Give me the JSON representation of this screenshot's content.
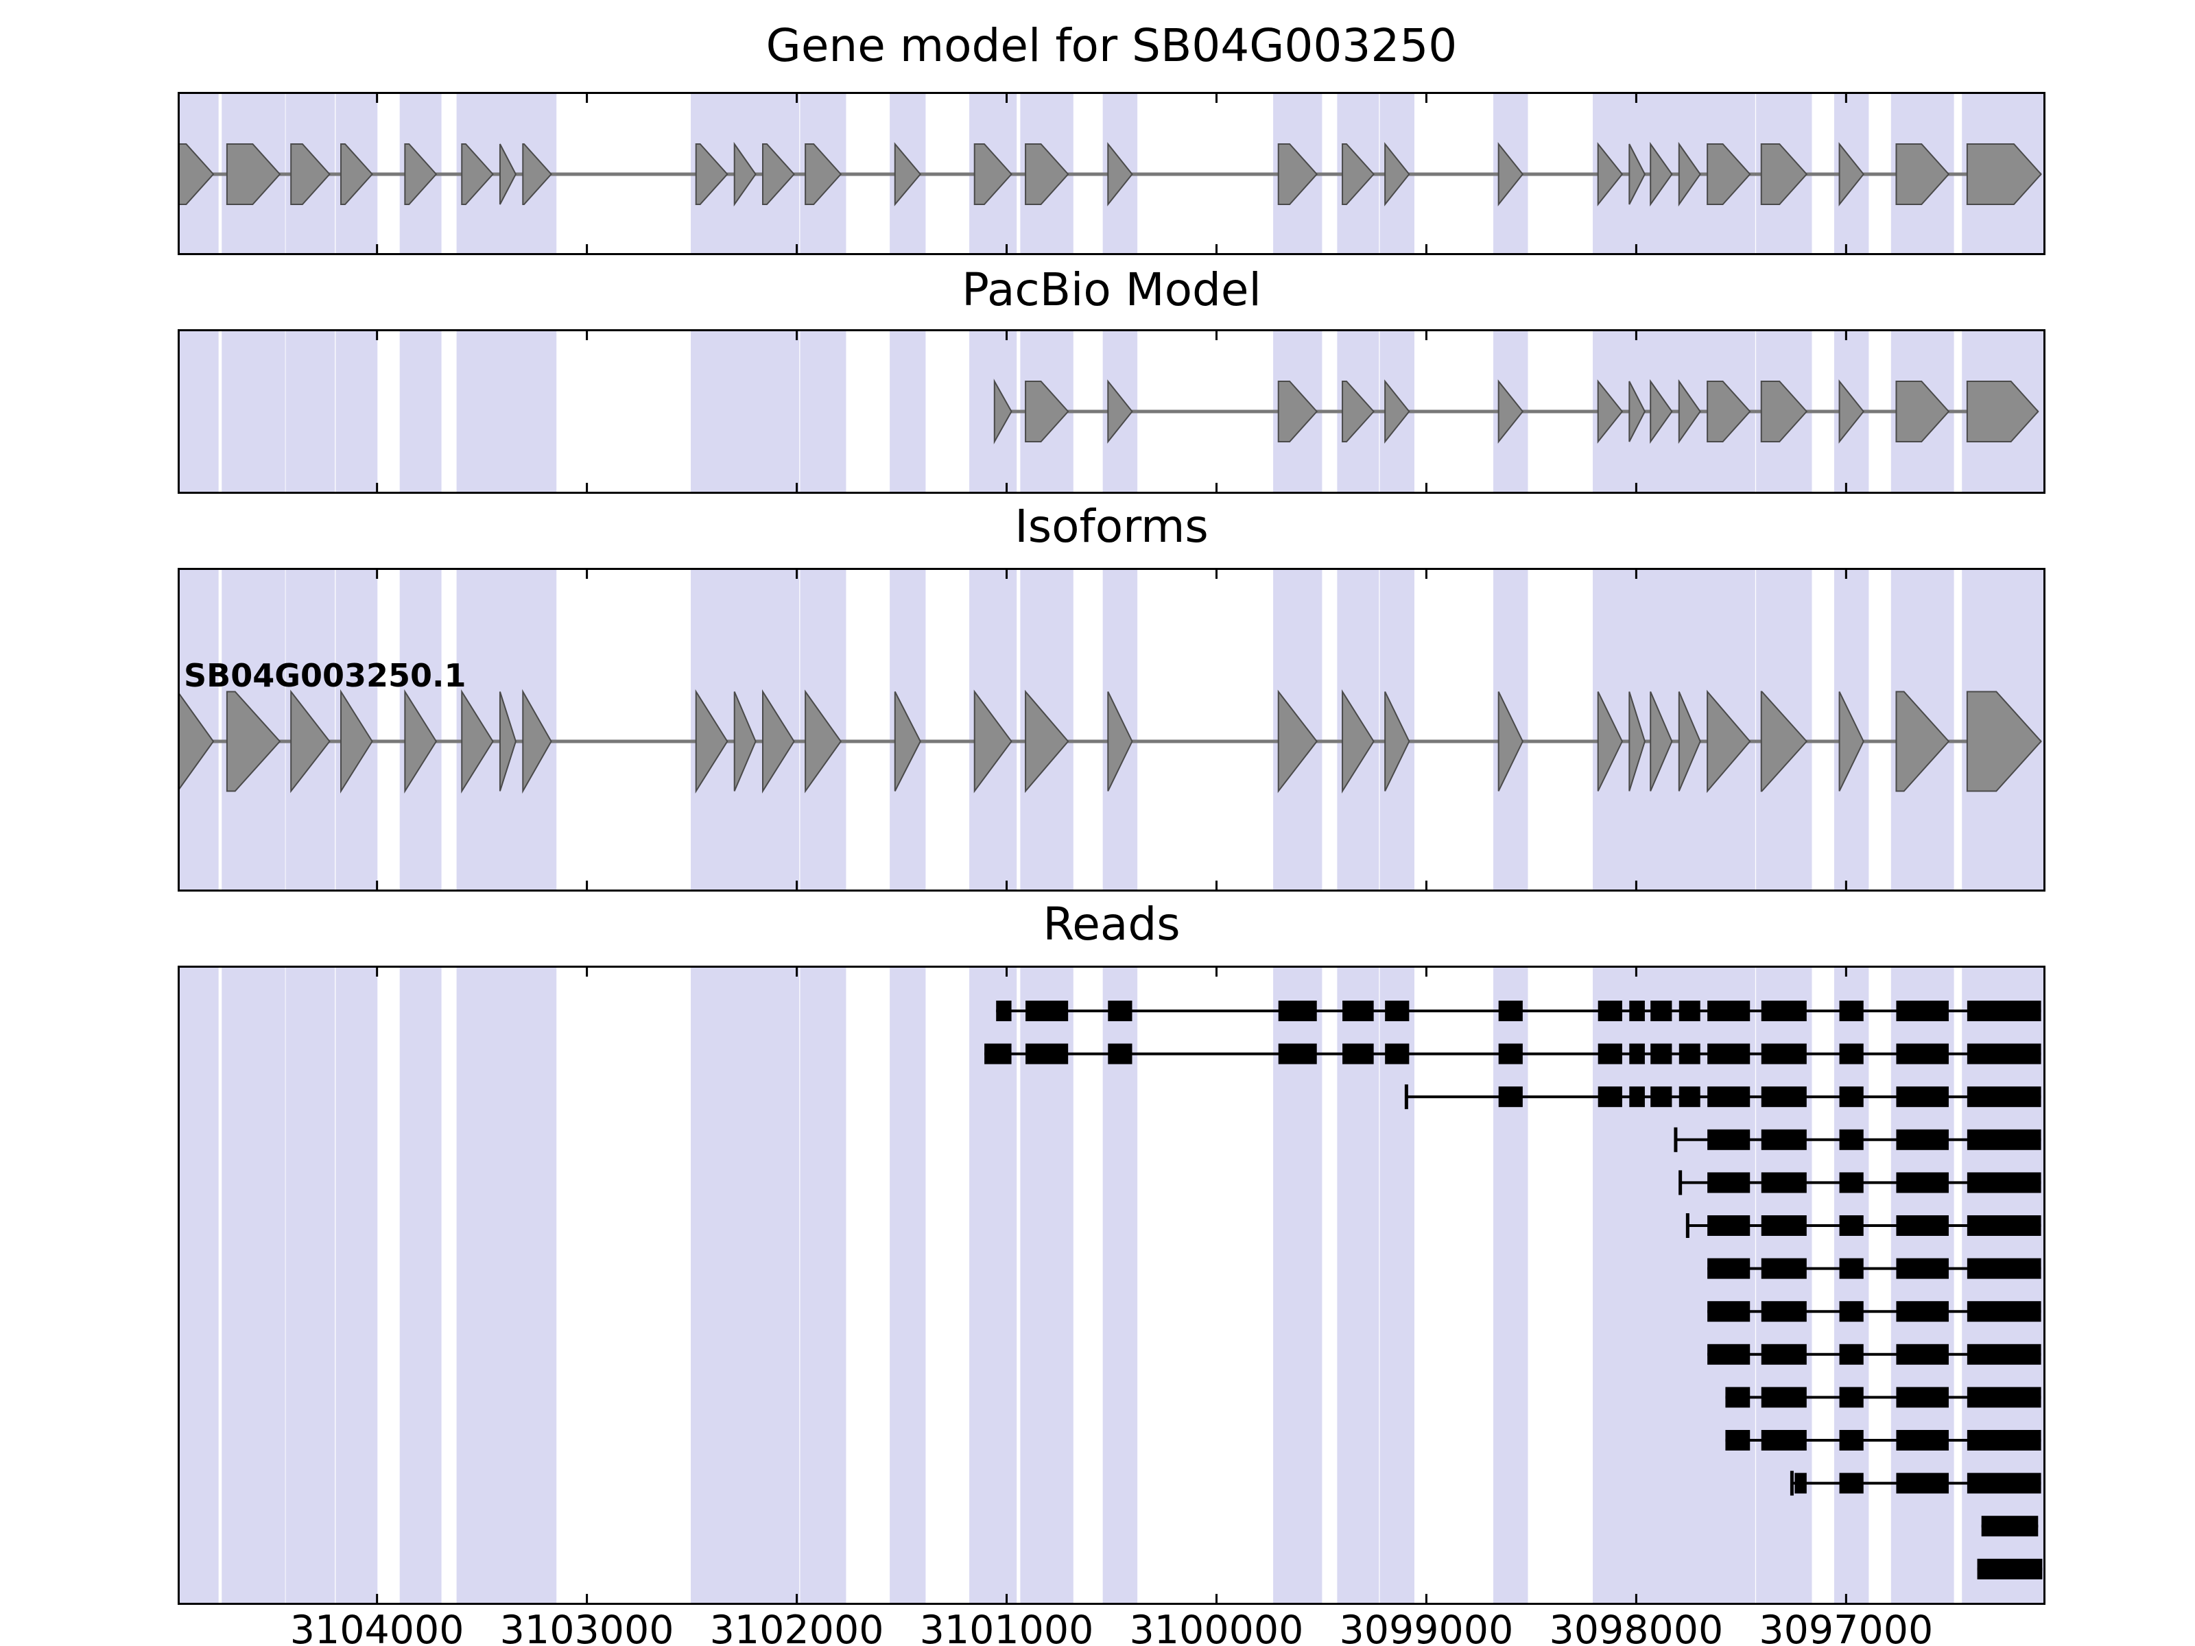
{
  "style": {
    "background": "#ffffff",
    "panel_border": "#000000",
    "highlight_color": "#d9d9f2",
    "model_fill": "#8c8c8c",
    "model_edge": "#4a4a4a",
    "intron_line": "#787878",
    "read_color": "#000000",
    "text_color": "#000000"
  },
  "chart_data": {
    "type": "table",
    "subtype": "genome-browser-interval-tracks",
    "title": "Gene model for SB04G003250",
    "gene_id": "SB04G003250",
    "x_axis": {
      "label": "",
      "orientation": "reversed",
      "left_value": 3104950,
      "right_value": 3096050,
      "tick_values": [
        3104000,
        3103000,
        3102000,
        3101000,
        3100000,
        3099000,
        3098000,
        3097000
      ],
      "tick_labels": [
        "3104000",
        "3103000",
        "3102000",
        "3101000",
        "3100000",
        "3099000",
        "3098000",
        "3097000"
      ]
    },
    "legend": "none",
    "grid": "off",
    "highlight_note": "light lavender vertical stripes mark exon regions across all panels",
    "panels": [
      {
        "id": "gene-model",
        "title": "Gene model for SB04G003250",
        "track_type": "model",
        "models": [
          {
            "name": "",
            "direction": "right",
            "exons": [
              [
                3104950,
                3104780
              ],
              [
                3104715,
                3104463
              ],
              [
                3104410,
                3104226
              ],
              [
                3104172,
                3104023
              ],
              [
                3103867,
                3103718
              ],
              [
                3103596,
                3103448
              ],
              [
                3103414,
                3103339
              ],
              [
                3103305,
                3103170
              ],
              [
                3102480,
                3102331
              ],
              [
                3102297,
                3102196
              ],
              [
                3102162,
                3102013
              ],
              [
                3101959,
                3101790
              ],
              [
                3101532,
                3101411
              ],
              [
                3101153,
                3100977
              ],
              [
                3100910,
                3100707
              ],
              [
                3100517,
                3100402
              ],
              [
                3099705,
                3099522
              ],
              [
                3099400,
                3099251
              ],
              [
                3099197,
                3099082
              ],
              [
                3098656,
                3098541
              ],
              [
                3098182,
                3098067
              ],
              [
                3098033,
                3097959
              ],
              [
                3097932,
                3097830
              ],
              [
                3097796,
                3097695
              ],
              [
                3097661,
                3097458
              ],
              [
                3097404,
                3097188
              ],
              [
                3097032,
                3096917
              ],
              [
                3096761,
                3096511
              ],
              [
                3096423,
                3096071
              ]
            ]
          }
        ]
      },
      {
        "id": "pacbio-model",
        "title": "PacBio Model",
        "track_type": "model",
        "models": [
          {
            "name": "",
            "direction": "right",
            "exons": [
              [
                3101058,
                3100977
              ],
              [
                3100910,
                3100707
              ],
              [
                3100517,
                3100402
              ],
              [
                3099705,
                3099522
              ],
              [
                3099400,
                3099251
              ],
              [
                3099197,
                3099082
              ],
              [
                3098656,
                3098541
              ],
              [
                3098182,
                3098067
              ],
              [
                3098033,
                3097959
              ],
              [
                3097932,
                3097830
              ],
              [
                3097796,
                3097695
              ],
              [
                3097661,
                3097458
              ],
              [
                3097404,
                3097188
              ],
              [
                3097032,
                3096917
              ],
              [
                3096761,
                3096511
              ],
              [
                3096423,
                3096085
              ]
            ]
          }
        ]
      },
      {
        "id": "isoforms",
        "title": "Isoforms",
        "track_type": "model",
        "models": [
          {
            "name": "SB04G003250.1",
            "direction": "right",
            "exons": [
              [
                3104950,
                3104780
              ],
              [
                3104715,
                3104463
              ],
              [
                3104410,
                3104226
              ],
              [
                3104172,
                3104023
              ],
              [
                3103867,
                3103718
              ],
              [
                3103596,
                3103448
              ],
              [
                3103414,
                3103339
              ],
              [
                3103305,
                3103170
              ],
              [
                3102480,
                3102331
              ],
              [
                3102297,
                3102196
              ],
              [
                3102162,
                3102013
              ],
              [
                3101959,
                3101790
              ],
              [
                3101532,
                3101411
              ],
              [
                3101153,
                3100977
              ],
              [
                3100910,
                3100707
              ],
              [
                3100517,
                3100402
              ],
              [
                3099705,
                3099522
              ],
              [
                3099400,
                3099251
              ],
              [
                3099197,
                3099082
              ],
              [
                3098656,
                3098541
              ],
              [
                3098182,
                3098067
              ],
              [
                3098033,
                3097959
              ],
              [
                3097932,
                3097830
              ],
              [
                3097796,
                3097695
              ],
              [
                3097661,
                3097458
              ],
              [
                3097404,
                3097188
              ],
              [
                3097032,
                3096917
              ],
              [
                3096761,
                3096511
              ],
              [
                3096423,
                3096071
              ]
            ]
          }
        ]
      },
      {
        "id": "reads",
        "title": "Reads",
        "track_type": "reads",
        "reads": [
          {
            "start": 3101050,
            "start_tick": false,
            "exons": [
              [
                3101050,
                3100977
              ],
              [
                3100910,
                3100707
              ],
              [
                3100517,
                3100402
              ],
              [
                3099705,
                3099522
              ],
              [
                3099400,
                3099251
              ],
              [
                3099197,
                3099082
              ],
              [
                3098656,
                3098541
              ],
              [
                3098182,
                3098067
              ],
              [
                3098033,
                3097959
              ],
              [
                3097932,
                3097830
              ],
              [
                3097796,
                3097695
              ],
              [
                3097661,
                3097458
              ],
              [
                3097404,
                3097188
              ],
              [
                3097032,
                3096917
              ],
              [
                3096761,
                3096511
              ],
              [
                3096423,
                3096071
              ]
            ]
          },
          {
            "start": 3101106,
            "start_tick": false,
            "exons": [
              [
                3101106,
                3100977
              ],
              [
                3100910,
                3100707
              ],
              [
                3100517,
                3100402
              ],
              [
                3099705,
                3099522
              ],
              [
                3099400,
                3099251
              ],
              [
                3099197,
                3099082
              ],
              [
                3098656,
                3098541
              ],
              [
                3098182,
                3098067
              ],
              [
                3098033,
                3097959
              ],
              [
                3097932,
                3097830
              ],
              [
                3097796,
                3097695
              ],
              [
                3097661,
                3097458
              ],
              [
                3097404,
                3097188
              ],
              [
                3097032,
                3096917
              ],
              [
                3096761,
                3096511
              ],
              [
                3096423,
                3096071
              ]
            ]
          },
          {
            "start": 3099095,
            "start_tick": true,
            "exons": [
              [
                3098656,
                3098541
              ],
              [
                3098182,
                3098067
              ],
              [
                3098033,
                3097959
              ],
              [
                3097932,
                3097830
              ],
              [
                3097796,
                3097695
              ],
              [
                3097661,
                3097458
              ],
              [
                3097404,
                3097188
              ],
              [
                3097032,
                3096917
              ],
              [
                3096761,
                3096511
              ],
              [
                3096423,
                3096071
              ]
            ]
          },
          {
            "start": 3097812,
            "start_tick": true,
            "exons": [
              [
                3097661,
                3097458
              ],
              [
                3097404,
                3097188
              ],
              [
                3097032,
                3096917
              ],
              [
                3096761,
                3096511
              ],
              [
                3096423,
                3096071
              ]
            ]
          },
          {
            "start": 3097790,
            "start_tick": true,
            "exons": [
              [
                3097661,
                3097458
              ],
              [
                3097404,
                3097188
              ],
              [
                3097032,
                3096917
              ],
              [
                3096761,
                3096511
              ],
              [
                3096423,
                3096071
              ]
            ]
          },
          {
            "start": 3097755,
            "start_tick": true,
            "exons": [
              [
                3097661,
                3097458
              ],
              [
                3097404,
                3097188
              ],
              [
                3097032,
                3096917
              ],
              [
                3096761,
                3096511
              ],
              [
                3096423,
                3096071
              ]
            ]
          },
          {
            "start": 3097661,
            "start_tick": false,
            "exons": [
              [
                3097661,
                3097458
              ],
              [
                3097404,
                3097188
              ],
              [
                3097032,
                3096917
              ],
              [
                3096761,
                3096511
              ],
              [
                3096423,
                3096071
              ]
            ]
          },
          {
            "start": 3097661,
            "start_tick": false,
            "exons": [
              [
                3097661,
                3097458
              ],
              [
                3097404,
                3097188
              ],
              [
                3097032,
                3096917
              ],
              [
                3096761,
                3096511
              ],
              [
                3096423,
                3096071
              ]
            ]
          },
          {
            "start": 3097661,
            "start_tick": false,
            "exons": [
              [
                3097661,
                3097458
              ],
              [
                3097404,
                3097188
              ],
              [
                3097032,
                3096917
              ],
              [
                3096761,
                3096511
              ],
              [
                3096423,
                3096071
              ]
            ]
          },
          {
            "start": 3097575,
            "start_tick": false,
            "exons": [
              [
                3097575,
                3097458
              ],
              [
                3097404,
                3097188
              ],
              [
                3097032,
                3096917
              ],
              [
                3096761,
                3096511
              ],
              [
                3096423,
                3096071
              ]
            ]
          },
          {
            "start": 3097575,
            "start_tick": false,
            "exons": [
              [
                3097575,
                3097458
              ],
              [
                3097404,
                3097188
              ],
              [
                3097032,
                3096917
              ],
              [
                3096761,
                3096511
              ],
              [
                3096423,
                3096071
              ]
            ]
          },
          {
            "start": 3097258,
            "start_tick": true,
            "exons": [
              [
                3097245,
                3097188
              ],
              [
                3097032,
                3096917
              ],
              [
                3096761,
                3096511
              ],
              [
                3096423,
                3096071
              ]
            ]
          },
          {
            "start": 3096355,
            "start_tick": false,
            "exons": [
              [
                3096355,
                3096085
              ]
            ]
          },
          {
            "start": 3096375,
            "start_tick": false,
            "exons": [
              [
                3096375,
                3096065
              ]
            ]
          }
        ]
      }
    ]
  }
}
